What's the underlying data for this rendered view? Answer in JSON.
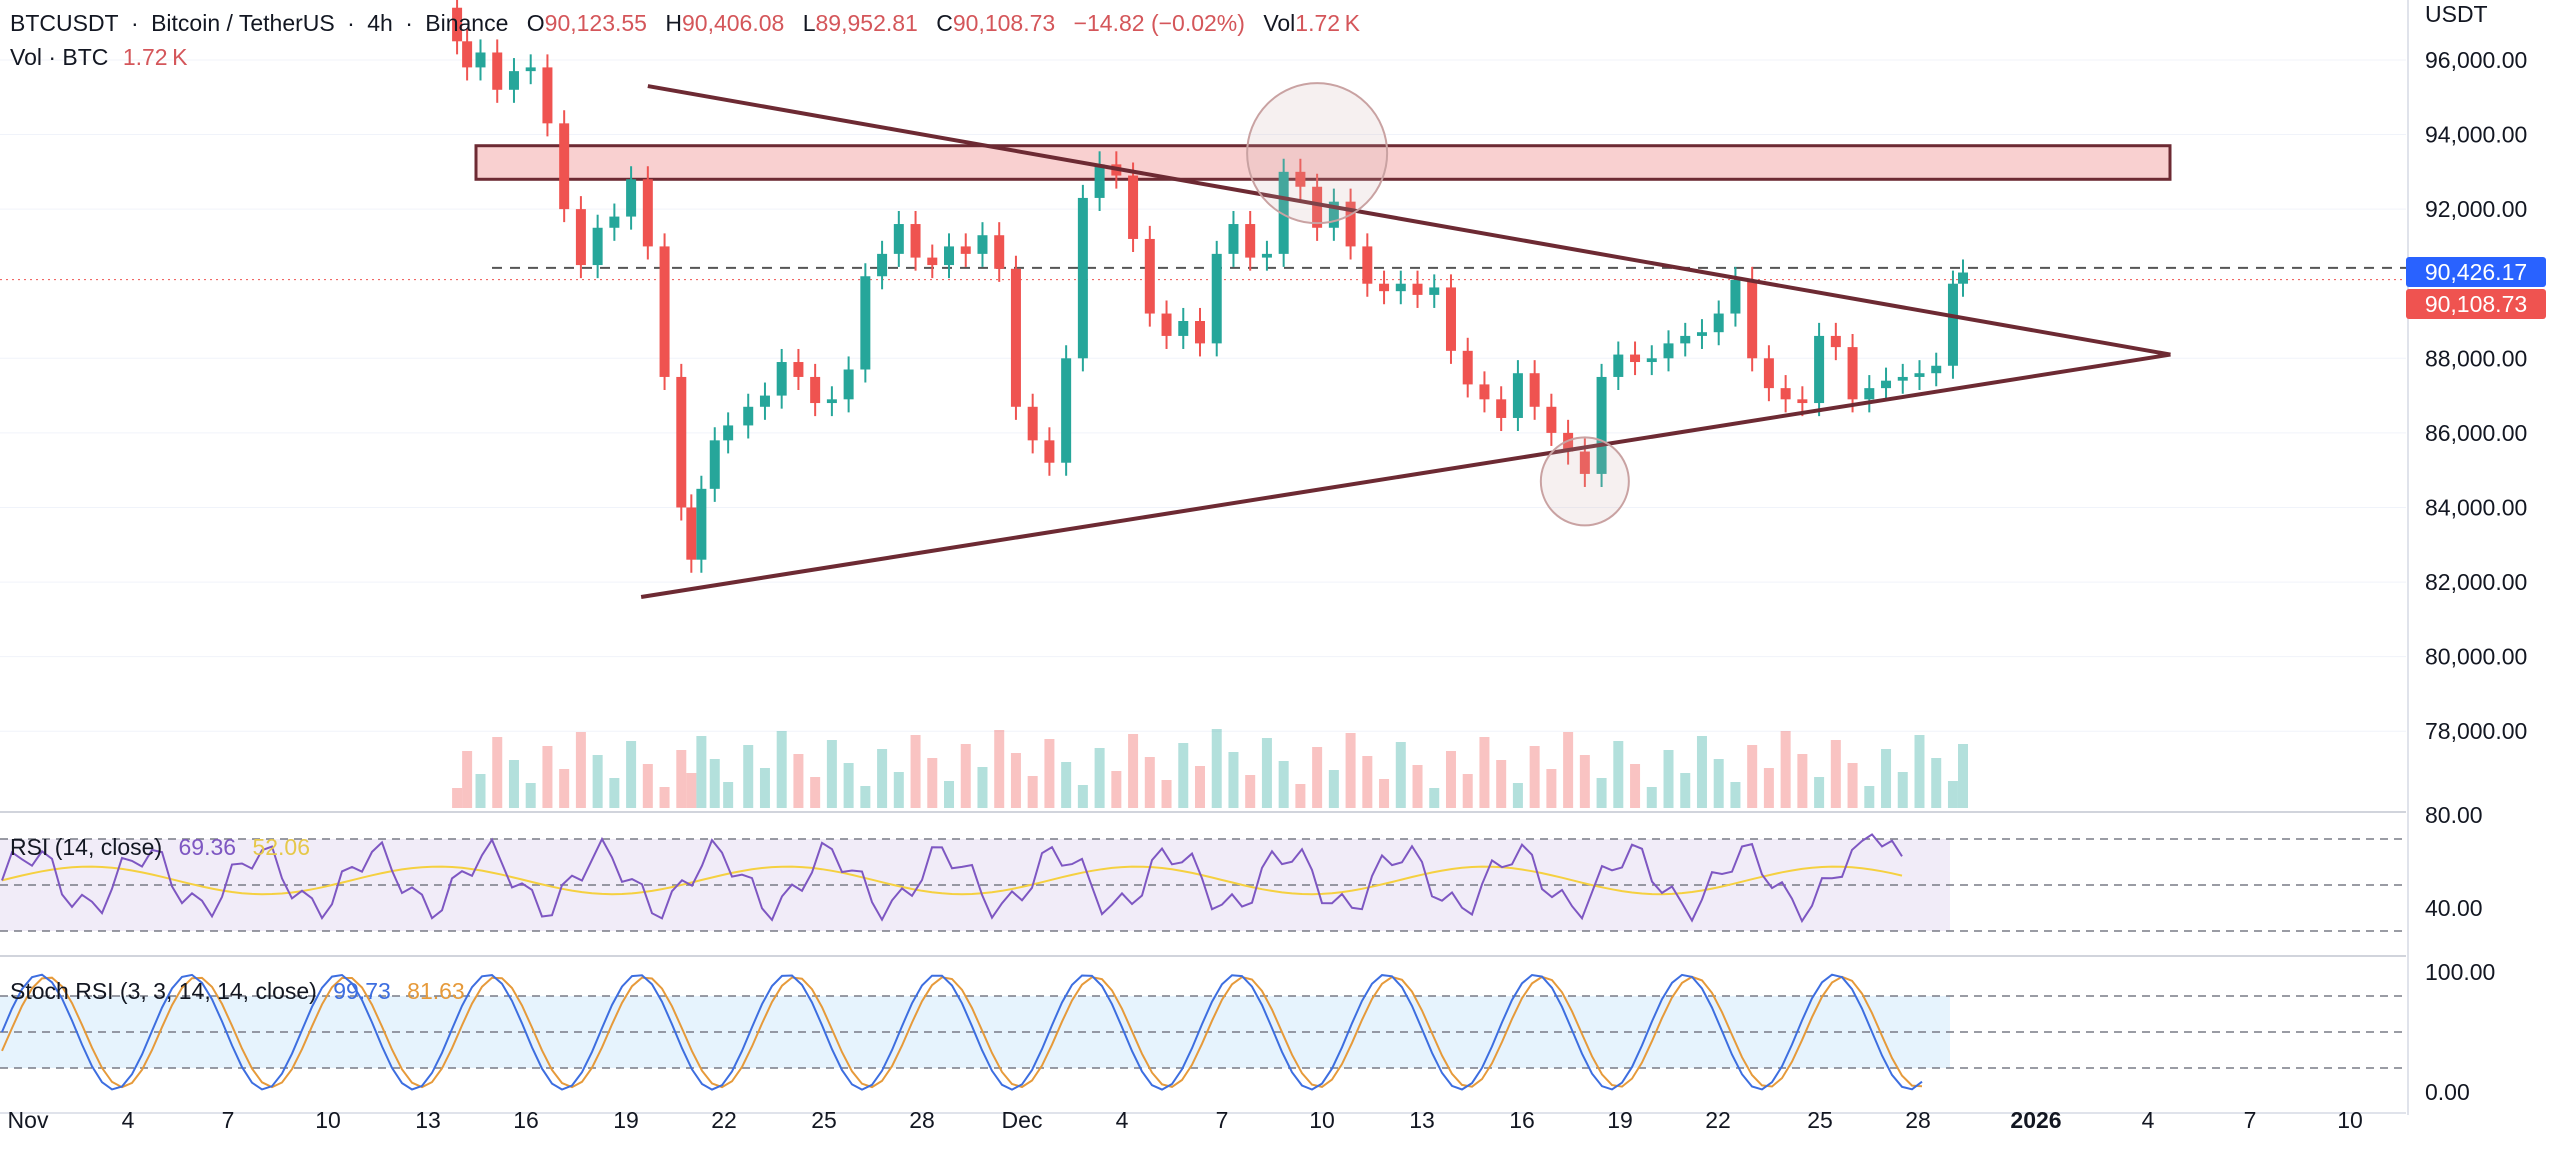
{
  "header": {
    "symbol": "BTCUSDT",
    "name": "Bitcoin / TetherUS",
    "interval": "4h",
    "exchange": "Binance",
    "open_label": "O",
    "open": "90,123.55",
    "high_label": "H",
    "high": "90,406.08",
    "low_label": "L",
    "low": "89,952.81",
    "close_label": "C",
    "close": "90,108.73",
    "change": "−14.82 (−0.02%)",
    "vol_label": "Vol",
    "vol": "1.72 K",
    "sep": "·",
    "vol_line_label": "Vol · BTC",
    "vol_line_value": "1.72 K"
  },
  "price_axis": {
    "currency": "USDT",
    "ticks": [
      "96,000.00",
      "94,000.00",
      "92,000.00",
      "88,000.00",
      "86,000.00",
      "84,000.00",
      "82,000.00",
      "80,000.00",
      "78,000.00"
    ],
    "partial_tick": "80.00",
    "tag_high": "90,426.17",
    "tag_close": "90,108.73"
  },
  "time_axis": {
    "labels": [
      "Nov",
      "4",
      "7",
      "10",
      "13",
      "16",
      "19",
      "22",
      "25",
      "28",
      "Dec",
      "4",
      "7",
      "10",
      "13",
      "16",
      "19",
      "22",
      "25",
      "28",
      "2026",
      "4",
      "7",
      "10"
    ]
  },
  "rsi_panel": {
    "label": "RSI (14, close)",
    "value": "69.36",
    "ma_value": "52.06",
    "tick": "40.00"
  },
  "stoch_panel": {
    "label": "Stoch RSI (3, 3, 14, 14, close)",
    "k_value": "99.73",
    "d_value": "81.63",
    "ticks": [
      "100.00",
      "0.00"
    ]
  },
  "colors": {
    "up": "#26a69a",
    "down": "#ef5350",
    "trend": "#6d2a33",
    "zone_fill": "#f9d0d0",
    "zone_stroke": "#6d2a33",
    "rsi_line": "#7e57c2",
    "rsi_ma": "#f5d040",
    "stoch_k": "#3d6ee0",
    "stoch_d": "#e69a3a",
    "tag_high": "#2962ff",
    "tag_close": "#ef5350"
  },
  "chart_data": {
    "type": "candlestick",
    "title": "BTCUSDT · Bitcoin / TetherUS · 4h · Binance",
    "ylim": [
      76800,
      97500
    ],
    "x_range": [
      "Nov 1",
      "Jan 11"
    ],
    "resistance_zone": [
      92800,
      93700
    ],
    "upper_trendline": [
      {
        "x": "Nov 20.0",
        "y": 95300
      },
      {
        "x": "Jan 4.5",
        "y": 88100
      }
    ],
    "lower_trendline": [
      {
        "x": "Nov 19.8",
        "y": 81600
      },
      {
        "x": "Jan 4.5",
        "y": 88100
      }
    ],
    "dashed_level": 90426.17,
    "last_close": 90108.73,
    "highlights": [
      {
        "x": "Dec 10",
        "y": 93500,
        "note": "double top wick"
      },
      {
        "x": "Dec 18",
        "y": 84700,
        "note": "wick low"
      }
    ],
    "ohlc_4h_sampled": {
      "x_days": [
        13.3,
        13.6,
        14.0,
        14.5,
        15.0,
        15.5,
        16.0,
        16.5,
        17.0,
        17.5,
        18.0,
        18.5,
        19.0,
        19.5,
        20.0,
        20.3,
        20.6,
        21.0,
        21.4,
        22.0,
        22.5,
        23.0,
        23.5,
        24.0,
        24.5,
        25.0,
        25.5,
        26.0,
        26.5,
        27.0,
        27.5,
        28.0,
        28.5,
        29.0,
        29.5,
        30.0,
        30.5,
        31.0,
        31.5,
        32.0,
        32.5,
        33.0,
        33.5,
        34.0,
        34.5,
        35.0,
        35.5,
        36.0,
        36.5,
        37.0,
        37.5,
        38.0,
        38.5,
        39.0,
        39.5,
        40.0,
        40.5,
        41.0,
        41.5,
        42.0,
        42.5,
        43.0,
        43.5,
        44.0,
        44.5,
        45.0,
        45.5,
        46.0,
        46.5,
        47.0,
        47.5,
        48.0,
        48.5,
        49.0,
        49.5,
        50.0,
        50.5,
        51.0,
        51.5,
        52.0,
        52.5,
        53.0,
        53.5,
        54.0,
        54.5,
        55.0,
        55.5,
        56.0,
        56.5,
        57.0,
        57.5,
        58.0,
        58.3
      ],
      "close": [
        96500,
        95800,
        96200,
        95200,
        95700,
        95800,
        94300,
        92000,
        90500,
        91500,
        91800,
        92800,
        91000,
        87500,
        84000,
        82600,
        84500,
        85800,
        86200,
        86700,
        87000,
        87900,
        87500,
        86800,
        86900,
        87700,
        90200,
        90800,
        91600,
        90700,
        90500,
        91000,
        90800,
        91300,
        90400,
        86700,
        85800,
        85200,
        88000,
        92300,
        93200,
        92900,
        91200,
        89200,
        88600,
        89000,
        88400,
        90800,
        91600,
        90700,
        90800,
        93000,
        92600,
        91500,
        92200,
        91000,
        90000,
        89800,
        90000,
        89700,
        89900,
        88200,
        87300,
        86900,
        86400,
        87600,
        86700,
        86000,
        85500,
        84900,
        87500,
        88100,
        87900,
        88000,
        88400,
        88600,
        88700,
        89200,
        90100,
        88000,
        87200,
        86900,
        86800,
        88600,
        88300,
        86900,
        87200,
        87400,
        87500,
        87600,
        87800,
        90000,
        90300
      ]
    },
    "volume_note": "bars along bottom of price pane, heights relative",
    "rsi_14": {
      "ticks": [
        40.0
      ],
      "last": 69.36,
      "ma_last": 52.06
    },
    "stoch_rsi": {
      "ticks": [
        100.0,
        0.0
      ],
      "k_last": 99.73,
      "d_last": 81.63
    }
  }
}
